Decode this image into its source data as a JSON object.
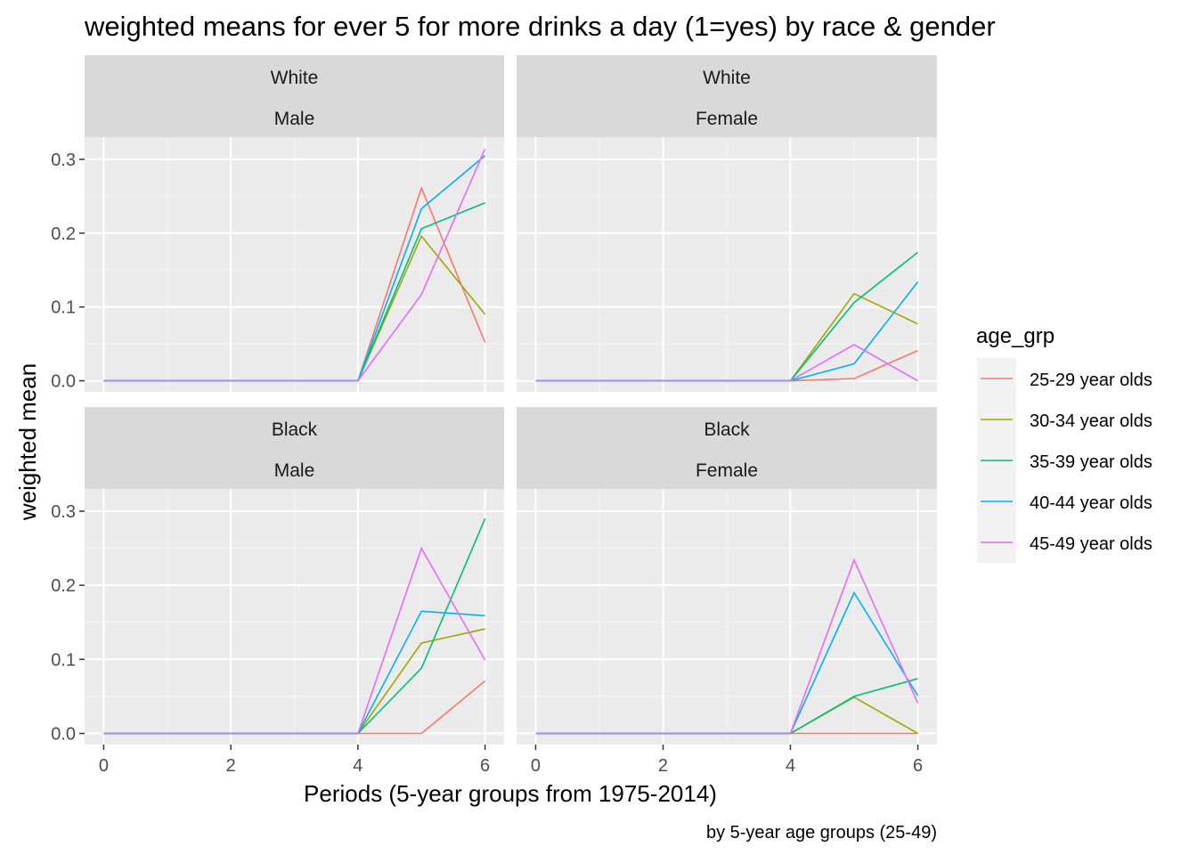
{
  "chart_data": {
    "type": "line",
    "title": "weighted means for ever 5 for more drinks a day (1=yes) by race & gender",
    "xlabel": "Periods (5-year groups from 1975-2014)",
    "ylabel": "weighted mean",
    "caption": "by 5-year age groups (25-49)",
    "x_ticks": [
      0,
      2,
      4,
      6
    ],
    "y_ticks": [
      0.0,
      0.1,
      0.2,
      0.3
    ],
    "y_tick_labels": [
      "0.0",
      "0.1",
      "0.2",
      "0.3"
    ],
    "x_tick_labels": [
      "0",
      "2",
      "4",
      "6"
    ],
    "xlim": [
      -0.3,
      6.3
    ],
    "ylim": [
      -0.015,
      0.33
    ],
    "grid": true,
    "legend": {
      "title": "age_grp",
      "position": "right",
      "entries": [
        {
          "label": "25-29 year olds",
          "color": "#F8766D"
        },
        {
          "label": "30-34 year olds",
          "color": "#A3A500"
        },
        {
          "label": "35-39 year olds",
          "color": "#00BF7D"
        },
        {
          "label": "40-44 year olds",
          "color": "#00B0F6"
        },
        {
          "label": "45-49 year olds",
          "color": "#E76BF3"
        }
      ]
    },
    "x": [
      0,
      1,
      2,
      3,
      4,
      5,
      6
    ],
    "panels": [
      {
        "race": "White",
        "gender": "Male",
        "series": [
          {
            "name": "25-29 year olds",
            "values": [
              0,
              0,
              0,
              0,
              0,
              0.261,
              0.052
            ]
          },
          {
            "name": "30-34 year olds",
            "values": [
              0,
              0,
              0,
              0,
              0,
              0.196,
              0.09
            ]
          },
          {
            "name": "35-39 year olds",
            "values": [
              0,
              0,
              0,
              0,
              0,
              0.206,
              0.241
            ]
          },
          {
            "name": "40-44 year olds",
            "values": [
              0,
              0,
              0,
              0,
              0,
              0.233,
              0.305
            ]
          },
          {
            "name": "45-49 year olds",
            "values": [
              0,
              0,
              0,
              0,
              0,
              0.117,
              0.314
            ]
          }
        ]
      },
      {
        "race": "White",
        "gender": "Female",
        "series": [
          {
            "name": "25-29 year olds",
            "values": [
              0,
              0,
              0,
              0,
              0,
              0.003,
              0.041
            ]
          },
          {
            "name": "30-34 year olds",
            "values": [
              0,
              0,
              0,
              0,
              0,
              0.118,
              0.077
            ]
          },
          {
            "name": "35-39 year olds",
            "values": [
              0,
              0,
              0,
              0,
              0,
              0.106,
              0.174
            ]
          },
          {
            "name": "40-44 year olds",
            "values": [
              0,
              0,
              0,
              0,
              0,
              0.023,
              0.134
            ]
          },
          {
            "name": "45-49 year olds",
            "values": [
              0,
              0,
              0,
              0,
              0,
              0.049,
              0.0
            ]
          }
        ]
      },
      {
        "race": "Black",
        "gender": "Male",
        "series": [
          {
            "name": "25-29 year olds",
            "values": [
              0,
              0,
              0,
              0,
              0,
              0.0,
              0.071
            ]
          },
          {
            "name": "30-34 year olds",
            "values": [
              0,
              0,
              0,
              0,
              0,
              0.122,
              0.141
            ]
          },
          {
            "name": "35-39 year olds",
            "values": [
              0,
              0,
              0,
              0,
              0,
              0.088,
              0.29
            ]
          },
          {
            "name": "40-44 year olds",
            "values": [
              0,
              0,
              0,
              0,
              0,
              0.165,
              0.159
            ]
          },
          {
            "name": "45-49 year olds",
            "values": [
              0,
              0,
              0,
              0,
              0,
              0.25,
              0.099
            ]
          }
        ]
      },
      {
        "race": "Black",
        "gender": "Female",
        "series": [
          {
            "name": "25-29 year olds",
            "values": [
              0,
              0,
              0,
              0,
              0,
              0.0,
              0.0
            ]
          },
          {
            "name": "30-34 year olds",
            "values": [
              0,
              0,
              0,
              0,
              0,
              0.049,
              0.0
            ]
          },
          {
            "name": "35-39 year olds",
            "values": [
              0,
              0,
              0,
              0,
              0,
              0.05,
              0.074
            ]
          },
          {
            "name": "40-44 year olds",
            "values": [
              0,
              0,
              0,
              0,
              0,
              0.19,
              0.051
            ]
          },
          {
            "name": "45-49 year olds",
            "values": [
              0,
              0,
              0,
              0,
              0,
              0.234,
              0.041
            ]
          }
        ]
      }
    ]
  }
}
